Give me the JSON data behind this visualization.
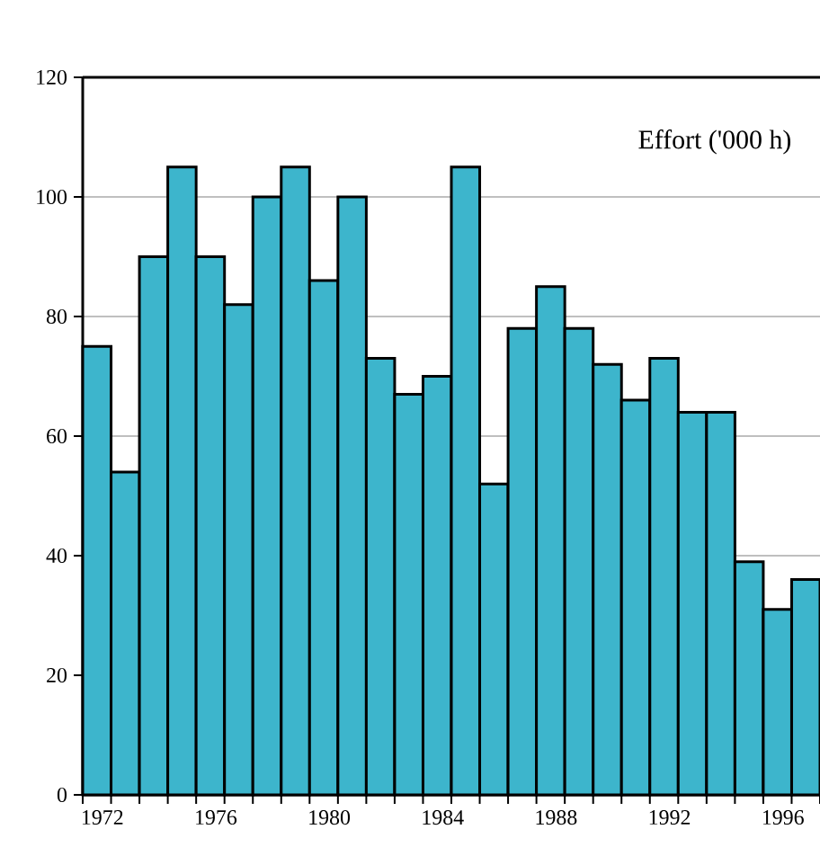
{
  "chart_data": {
    "type": "bar",
    "title": "Effort ('000 h)",
    "categories": [
      "1972",
      null,
      null,
      null,
      "1976",
      null,
      null,
      null,
      "1980",
      null,
      null,
      null,
      "1984",
      null,
      null,
      null,
      "1988",
      null,
      null,
      null,
      "1992",
      null,
      null,
      null,
      "1996",
      null
    ],
    "values": [
      75,
      54,
      90,
      105,
      90,
      82,
      100,
      105,
      86,
      100,
      73,
      67,
      70,
      105,
      52,
      78,
      85,
      78,
      72,
      66,
      73,
      64,
      64,
      39,
      31,
      36
    ],
    "color": "#3db5cc",
    "ylim": [
      0,
      120
    ],
    "yticks": [
      0,
      20,
      40,
      60,
      80,
      100,
      120
    ],
    "grid": "y"
  }
}
